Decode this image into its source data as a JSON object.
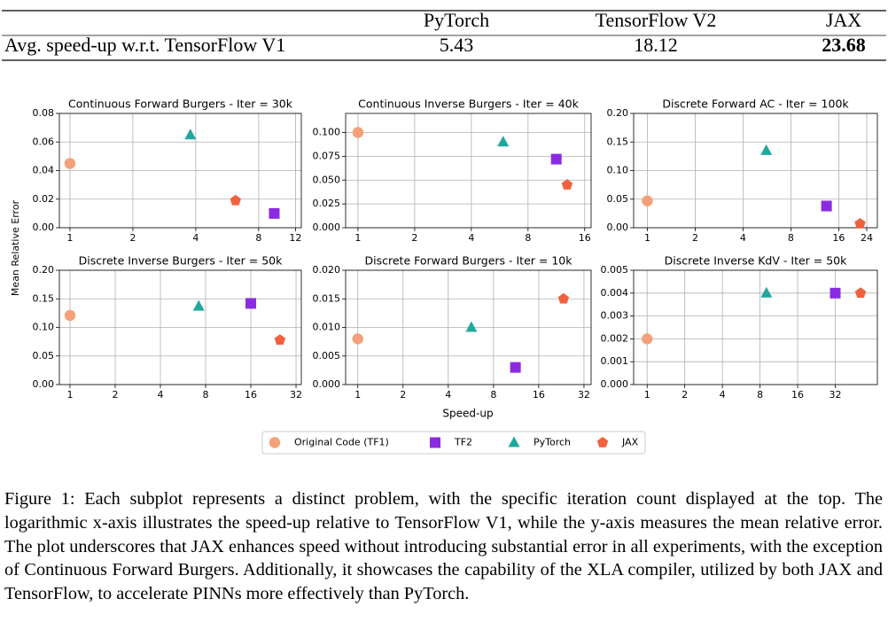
{
  "table": {
    "columns": [
      "PyTorch",
      "TensorFlow V2",
      "JAX"
    ],
    "rows": [
      {
        "label": "Avg. speed-up w.r.t. TensorFlow V1",
        "values": [
          5.43,
          18.12,
          23.68
        ]
      }
    ],
    "bold_column": 2
  },
  "figure": {
    "ylabel": "Mean Relative Error",
    "xlabel": "Speed-up"
  },
  "chart_data": [
    {
      "type": "scatter",
      "title": "Continuous Forward Burgers - Iter = 30k",
      "xscale": "log",
      "grid": true,
      "xlim": [
        0.89,
        12.8
      ],
      "xticks": [
        1,
        2,
        4,
        8,
        12
      ],
      "ylim": [
        0,
        0.08
      ],
      "yticks": [
        {
          "value": 0,
          "label": "0.00"
        },
        {
          "value": 0.02,
          "label": "0.02"
        },
        {
          "value": 0.04,
          "label": "0.04"
        },
        {
          "value": 0.06,
          "label": "0.06"
        },
        {
          "value": 0.08,
          "label": "0.08"
        }
      ],
      "series": [
        {
          "name": "Original Code (TF1)",
          "color": "#f4a07a",
          "marker": "circle",
          "x": [
            1
          ],
          "values": [
            0.045
          ]
        },
        {
          "name": "TF2",
          "color": "#8a2be2",
          "marker": "square",
          "x": [
            9.5
          ],
          "values": [
            0.01
          ]
        },
        {
          "name": "PyTorch",
          "color": "#20a89e",
          "marker": "triangle",
          "x": [
            3.77
          ],
          "values": [
            0.065
          ]
        },
        {
          "name": "JAX",
          "color": "#f2613d",
          "marker": "pentagon",
          "x": [
            6.2
          ],
          "values": [
            0.019
          ]
        }
      ]
    },
    {
      "type": "scatter",
      "title": "Continuous Inverse Burgers - Iter = 40k",
      "xscale": "log",
      "grid": true,
      "xlim": [
        0.86,
        17.3
      ],
      "xticks": [
        1,
        2,
        4,
        8,
        16
      ],
      "ylim": [
        0,
        0.12
      ],
      "yticks": [
        {
          "value": 0,
          "label": "0.000"
        },
        {
          "value": 0.025,
          "label": "0.025"
        },
        {
          "value": 0.05,
          "label": "0.050"
        },
        {
          "value": 0.075,
          "label": "0.075"
        },
        {
          "value": 0.1,
          "label": "0.100"
        }
      ],
      "series": [
        {
          "name": "Original Code (TF1)",
          "color": "#f4a07a",
          "marker": "circle",
          "x": [
            1
          ],
          "values": [
            0.1
          ]
        },
        {
          "name": "TF2",
          "color": "#8a2be2",
          "marker": "square",
          "x": [
            11.3
          ],
          "values": [
            0.072
          ]
        },
        {
          "name": "PyTorch",
          "color": "#20a89e",
          "marker": "triangle",
          "x": [
            5.9
          ],
          "values": [
            0.09
          ]
        },
        {
          "name": "JAX",
          "color": "#f2613d",
          "marker": "pentagon",
          "x": [
            12.9
          ],
          "values": [
            0.045
          ]
        }
      ]
    },
    {
      "type": "scatter",
      "title": "Discrete Forward AC - Iter = 100k",
      "xscale": "log",
      "grid": true,
      "xlim": [
        0.82,
        28
      ],
      "xticks": [
        1,
        2,
        4,
        8,
        16,
        24
      ],
      "ylim": [
        0,
        0.2
      ],
      "yticks": [
        {
          "value": 0,
          "label": "0.00"
        },
        {
          "value": 0.05,
          "label": "0.05"
        },
        {
          "value": 0.1,
          "label": "0.10"
        },
        {
          "value": 0.15,
          "label": "0.15"
        },
        {
          "value": 0.2,
          "label": "0.20"
        }
      ],
      "series": [
        {
          "name": "Original Code (TF1)",
          "color": "#f4a07a",
          "marker": "circle",
          "x": [
            1
          ],
          "values": [
            0.047
          ]
        },
        {
          "name": "TF2",
          "color": "#8a2be2",
          "marker": "square",
          "x": [
            13.4
          ],
          "values": [
            0.038
          ]
        },
        {
          "name": "PyTorch",
          "color": "#20a89e",
          "marker": "triangle",
          "x": [
            5.6
          ],
          "values": [
            0.135
          ]
        },
        {
          "name": "JAX",
          "color": "#f2613d",
          "marker": "pentagon",
          "x": [
            21.8
          ],
          "values": [
            0.007
          ]
        }
      ]
    },
    {
      "type": "scatter",
      "title": "Discrete Inverse Burgers - Iter = 50k",
      "xscale": "log",
      "grid": true,
      "xlim": [
        0.85,
        34.7
      ],
      "xticks": [
        1,
        2,
        4,
        8,
        16,
        32
      ],
      "ylim": [
        0,
        0.2
      ],
      "yticks": [
        {
          "value": 0,
          "label": "0.00"
        },
        {
          "value": 0.05,
          "label": "0.05"
        },
        {
          "value": 0.1,
          "label": "0.10"
        },
        {
          "value": 0.15,
          "label": "0.15"
        },
        {
          "value": 0.2,
          "label": "0.20"
        }
      ],
      "series": [
        {
          "name": "Original Code (TF1)",
          "color": "#f4a07a",
          "marker": "circle",
          "x": [
            1
          ],
          "values": [
            0.121
          ]
        },
        {
          "name": "TF2",
          "color": "#8a2be2",
          "marker": "square",
          "x": [
            16
          ],
          "values": [
            0.142
          ]
        },
        {
          "name": "PyTorch",
          "color": "#20a89e",
          "marker": "triangle",
          "x": [
            7.2
          ],
          "values": [
            0.137
          ]
        },
        {
          "name": "JAX",
          "color": "#f2613d",
          "marker": "pentagon",
          "x": [
            25
          ],
          "values": [
            0.078
          ]
        }
      ]
    },
    {
      "type": "scatter",
      "title": "Discrete Forward Burgers - Iter = 10k",
      "xscale": "log",
      "grid": true,
      "xlim": [
        0.83,
        35.7
      ],
      "xticks": [
        1,
        2,
        4,
        8,
        16,
        32
      ],
      "ylim": [
        0,
        0.02
      ],
      "yticks": [
        {
          "value": 0,
          "label": "0.000"
        },
        {
          "value": 0.005,
          "label": "0.005"
        },
        {
          "value": 0.01,
          "label": "0.010"
        },
        {
          "value": 0.015,
          "label": "0.015"
        },
        {
          "value": 0.02,
          "label": "0.020"
        }
      ],
      "series": [
        {
          "name": "Original Code (TF1)",
          "color": "#f4a07a",
          "marker": "circle",
          "x": [
            1
          ],
          "values": [
            0.008
          ]
        },
        {
          "name": "TF2",
          "color": "#8a2be2",
          "marker": "square",
          "x": [
            11.2
          ],
          "values": [
            0.003
          ]
        },
        {
          "name": "PyTorch",
          "color": "#20a89e",
          "marker": "triangle",
          "x": [
            5.7
          ],
          "values": [
            0.01
          ]
        },
        {
          "name": "JAX",
          "color": "#f2613d",
          "marker": "pentagon",
          "x": [
            23.4
          ],
          "values": [
            0.015
          ]
        }
      ]
    },
    {
      "type": "scatter",
      "title": "Discrete Inverse KdV - Iter = 50k",
      "xscale": "log",
      "grid": true,
      "xlim": [
        0.78,
        69.5
      ],
      "xticks": [
        1,
        2,
        4,
        8,
        16,
        32
      ],
      "ylim": [
        0,
        0.005
      ],
      "yticks": [
        {
          "value": 0,
          "label": "0.000"
        },
        {
          "value": 0.001,
          "label": "0.001"
        },
        {
          "value": 0.002,
          "label": "0.002"
        },
        {
          "value": 0.003,
          "label": "0.003"
        },
        {
          "value": 0.004,
          "label": "0.004"
        },
        {
          "value": 0.005,
          "label": "0.005"
        }
      ],
      "series": [
        {
          "name": "Original Code (TF1)",
          "color": "#f4a07a",
          "marker": "circle",
          "x": [
            1
          ],
          "values": [
            0.002
          ]
        },
        {
          "name": "TF2",
          "color": "#8a2be2",
          "marker": "square",
          "x": [
            32
          ],
          "values": [
            0.004
          ]
        },
        {
          "name": "PyTorch",
          "color": "#20a89e",
          "marker": "triangle",
          "x": [
            9
          ],
          "values": [
            0.004
          ]
        },
        {
          "name": "JAX",
          "color": "#f2613d",
          "marker": "pentagon",
          "x": [
            51
          ],
          "values": [
            0.004
          ]
        }
      ]
    }
  ],
  "caption": {
    "label": "Figure 1:",
    "text": "Each subplot represents a distinct problem, with the specific iteration count displayed at the top. The logarithmic x-axis illustrates the speed-up relative to TensorFlow V1, while the y-axis measures the mean relative error. The plot underscores that JAX enhances speed without introducing substantial error in all experiments, with the exception of Continuous Forward Burgers. Additionally, it showcases the capability of the XLA compiler, utilized by both JAX and TensorFlow, to accelerate PINNs more effectively than PyTorch."
  }
}
